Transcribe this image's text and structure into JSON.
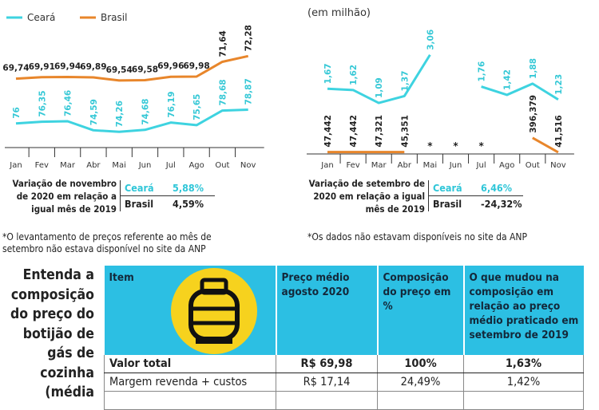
{
  "chart_data": [
    {
      "type": "line",
      "categories": [
        "Jan",
        "Fev",
        "Mar",
        "Abr",
        "Mai",
        "Jun",
        "Jul",
        "Ago",
        "Out",
        "Nov"
      ],
      "series": [
        {
          "name": "Ceará",
          "color": "#3ed3e0",
          "axis": "y2",
          "values": [
            76,
            76.35,
            76.46,
            74.59,
            74.26,
            74.68,
            76.19,
            75.65,
            78.68,
            78.87
          ],
          "value_labels": [
            "76",
            "76,35",
            "76,46",
            "74,59",
            "74,26",
            "74,68",
            "76,19",
            "75,65",
            "78,68",
            "78,87"
          ]
        },
        {
          "name": "Brasil",
          "color": "#e8862b",
          "values": [
            69.74,
            69.91,
            69.94,
            69.89,
            69.54,
            69.58,
            69.96,
            69.98,
            71.64,
            72.28
          ],
          "value_labels": [
            "69,74",
            "69,91",
            "69,94",
            "69,89",
            "69,54",
            "69,58",
            "69,96",
            "69,98",
            "71,64",
            "72,28"
          ]
        }
      ],
      "ylim": [
        62,
        75
      ],
      "y2lim": [
        71,
        95
      ],
      "legend": "top-left"
    },
    {
      "type": "line",
      "subtitle": "(em milhão)",
      "categories": [
        "Jan",
        "Fev",
        "Mar",
        "Abr",
        "Mai",
        "Jun",
        "Jul",
        "Ago",
        "Out",
        "Nov"
      ],
      "series": [
        {
          "name": "Ceará",
          "color": "#3ed3e0",
          "axis": "y2",
          "values": [
            1.67,
            1.62,
            1.09,
            1.37,
            3.06,
            null,
            1.76,
            1.42,
            1.88,
            1.23
          ],
          "value_labels": [
            "1,67",
            "1,62",
            "1,09",
            "1,37",
            "3,06",
            null,
            "1,76",
            "1,42",
            "1,88",
            "1,23"
          ]
        },
        {
          "name": "Brasil",
          "color": "#e8862b",
          "values": [
            47.442,
            47.442,
            47.321,
            45.351,
            null,
            null,
            null,
            null,
            396.379,
            41.516
          ],
          "value_labels": [
            "47,442",
            "47,442",
            "47,321",
            "45,351",
            "*",
            "*",
            "*",
            null,
            "396,379",
            "41,516"
          ]
        }
      ],
      "ylim": [
        0,
        3000
      ],
      "y2lim": [
        -1,
        4
      ]
    }
  ],
  "summaries": [
    {
      "text": "Variação de novembro de 2020 em relação a igual mês de 2019",
      "rows": [
        [
          "Ceará",
          "5,88%"
        ],
        [
          "Brasil",
          "4,59%"
        ]
      ]
    },
    {
      "text": "Variação de setembro de 2020 em relação a igual mês de 2019",
      "rows": [
        [
          "Ceará",
          "6,46%"
        ],
        [
          "Brasil",
          "-24,32%"
        ]
      ]
    }
  ],
  "notes": [
    "*O levantamento de preços referente ao mês de setembro não estava disponível no site da ANP",
    "*Os dados não estavam disponíveis no site da ANP"
  ],
  "heading": "Entenda a composição do preço do botijão de gás de cozinha (média",
  "table": {
    "header": [
      "Item",
      "Preço médio agosto 2020",
      "Composição do preço em %",
      "O que mudou na composição em relação ao preço médio praticado em setembro de 2019"
    ],
    "rows": [
      [
        "Valor total",
        "R$ 69,98",
        "100%",
        "1,63%"
      ],
      [
        "Margem revenda + custos",
        "R$ 17,14",
        "24,49%",
        "1,42%"
      ]
    ]
  }
}
